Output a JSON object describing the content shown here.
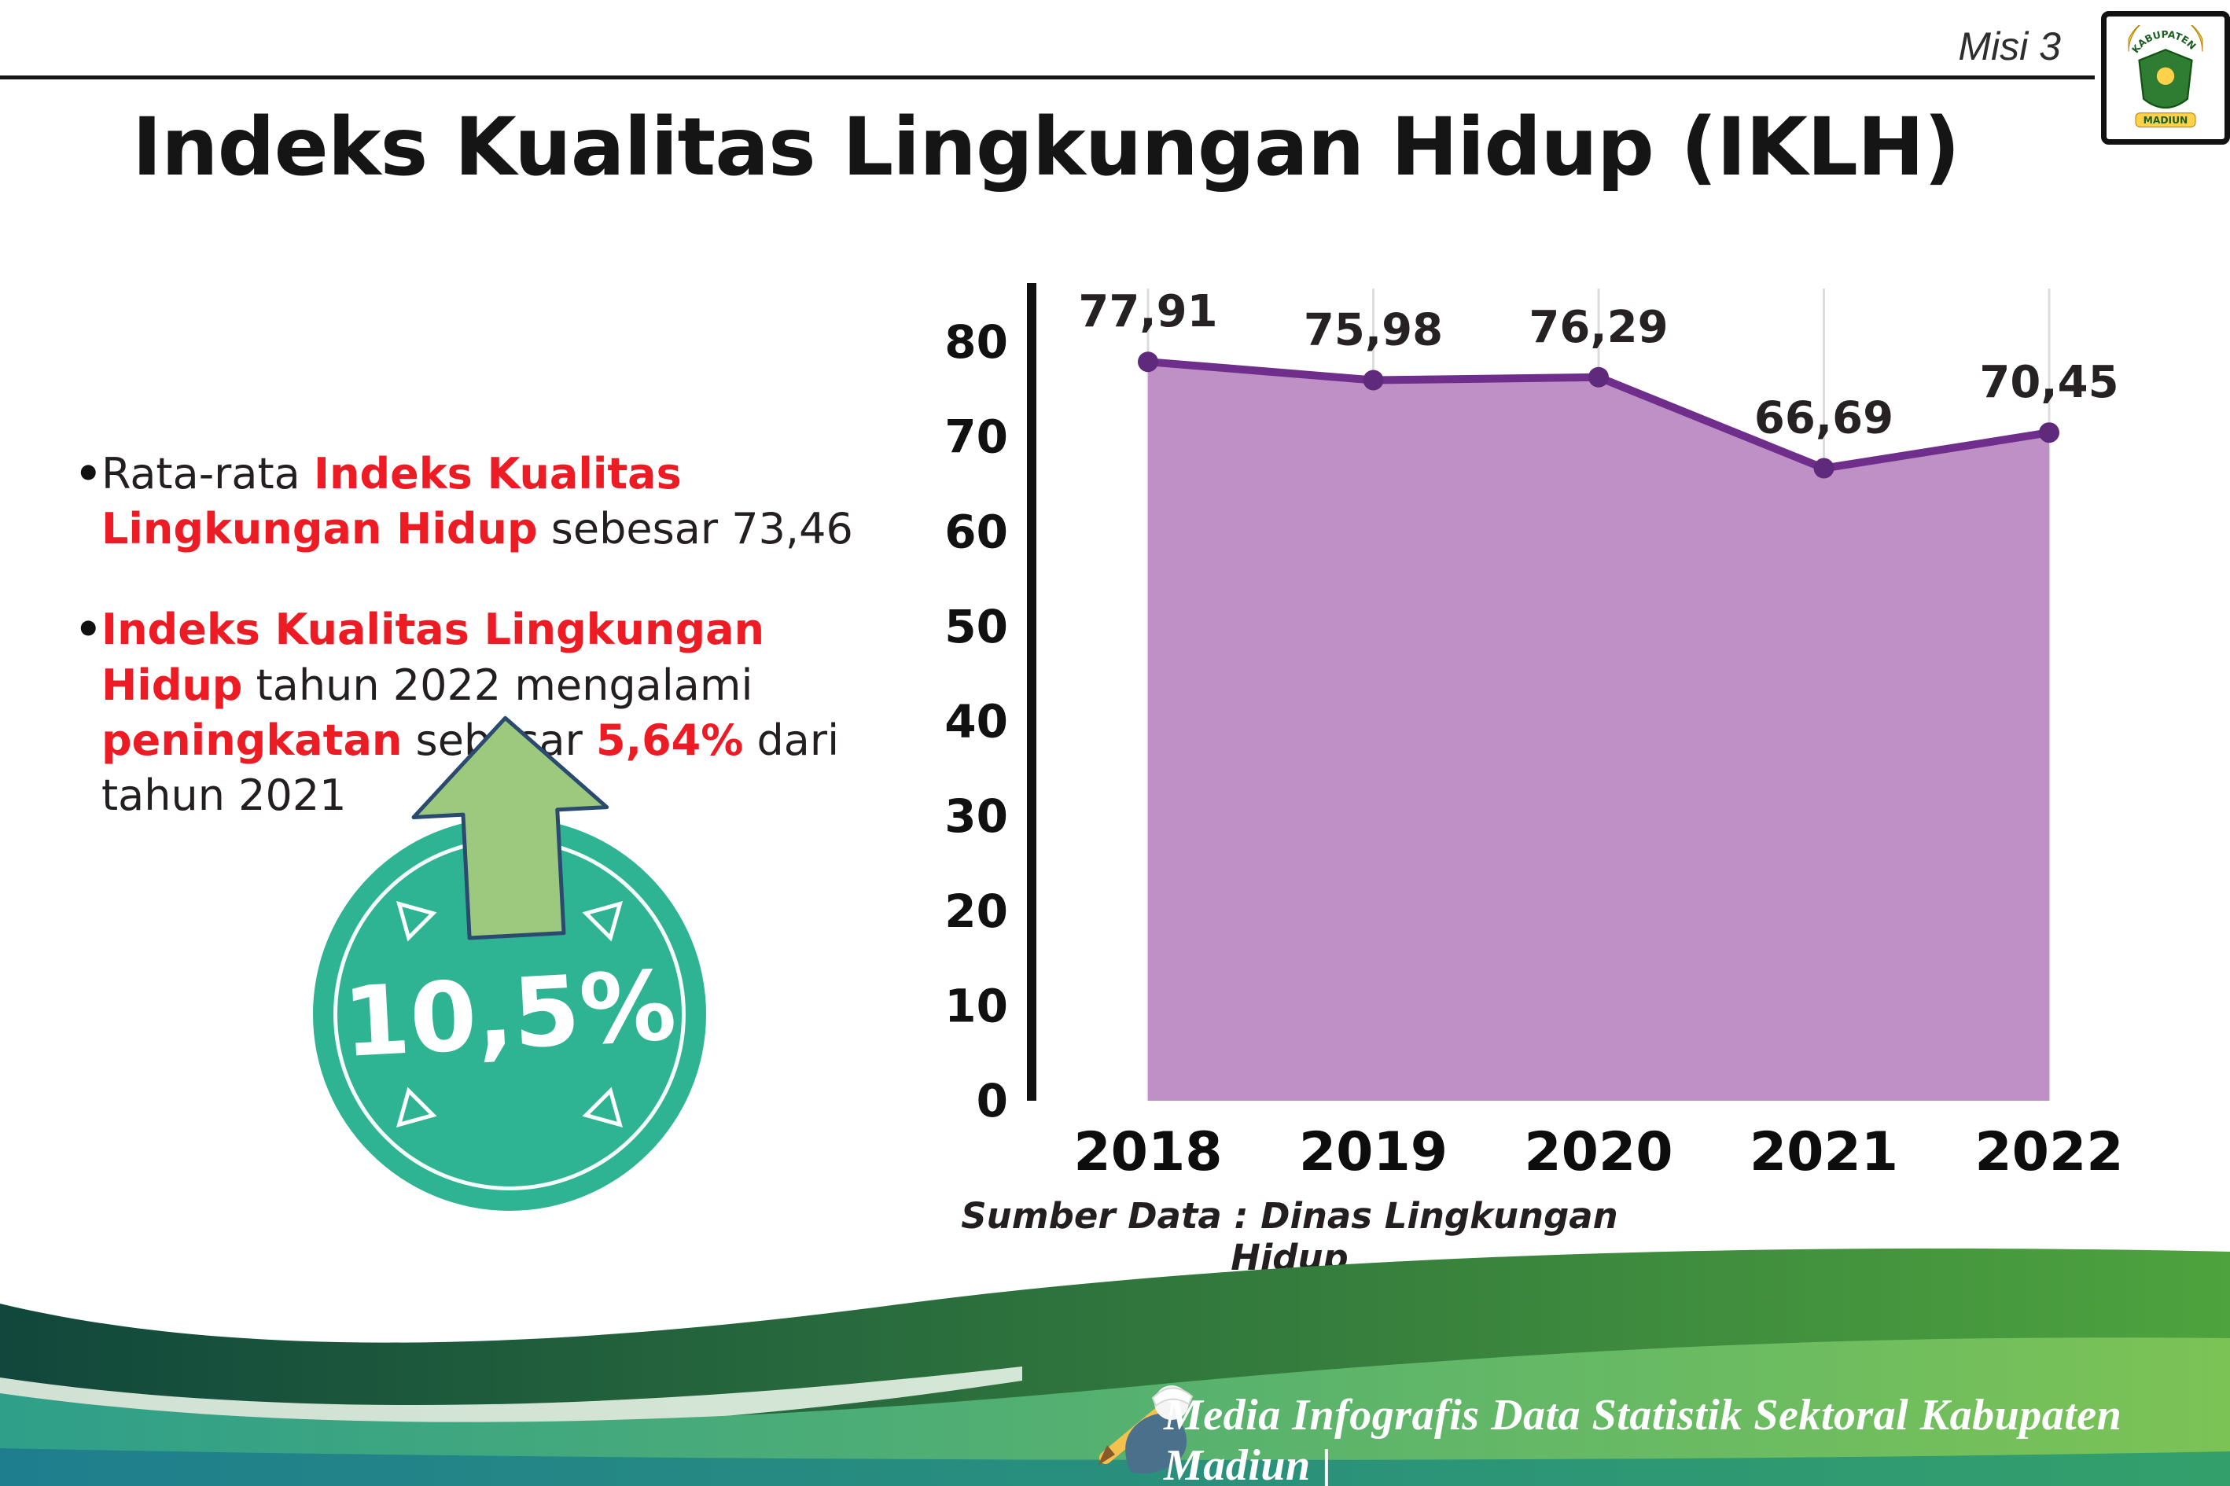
{
  "header": {
    "misi_label": "Misi 3",
    "logo": {
      "top_text": "KABUPATEN",
      "bottom_text": "MADIUN"
    }
  },
  "title": "Indeks Kualitas Lingkungan Hidup (IKLH)",
  "bullets": [
    {
      "segments": [
        {
          "t": "Rata-rata ",
          "c": "black"
        },
        {
          "t": "Indeks Kualitas Lingkungan Hidup",
          "c": "red"
        },
        {
          "t": " sebesar 73,46",
          "c": "black"
        }
      ]
    },
    {
      "segments": [
        {
          "t": "Indeks Kualitas Lingkungan Hidup",
          "c": "red"
        },
        {
          "t": " tahun 2022 mengalami ",
          "c": "black"
        },
        {
          "t": "peningkatan",
          "c": "red"
        },
        {
          "t": " sebesar ",
          "c": "black"
        },
        {
          "t": "5,64%",
          "c": "red"
        },
        {
          "t": " dari tahun 2021",
          "c": "black"
        }
      ]
    }
  ],
  "badge": {
    "value": "10,5%"
  },
  "chart_data": {
    "type": "area",
    "categories": [
      "2018",
      "2019",
      "2020",
      "2021",
      "2022"
    ],
    "values": [
      77.91,
      75.98,
      76.29,
      66.69,
      70.45
    ],
    "value_labels": [
      "77,91",
      "75,98",
      "76,29",
      "66,69",
      "70,45"
    ],
    "title": "",
    "xlabel": "",
    "ylabel": "",
    "ylim": [
      0,
      80
    ],
    "ytick_step": 10,
    "grid": "vertical-light",
    "legend": "none",
    "area_color": "#be90c5",
    "line_color": "#6f2e8c",
    "point_color": "#5f2a7c",
    "source_label": "Sumber Data : Dinas Lingkungan Hidup"
  },
  "footer": {
    "credit": "Media Infografis Data Statistik Sektoral Kabupaten Madiun |"
  },
  "colors": {
    "accent_red": "#ec1b24",
    "teal": "#2eb492",
    "arrow_green": "#9cc97e",
    "area_purple": "#be90c5",
    "line_purple": "#6f2e8c"
  }
}
